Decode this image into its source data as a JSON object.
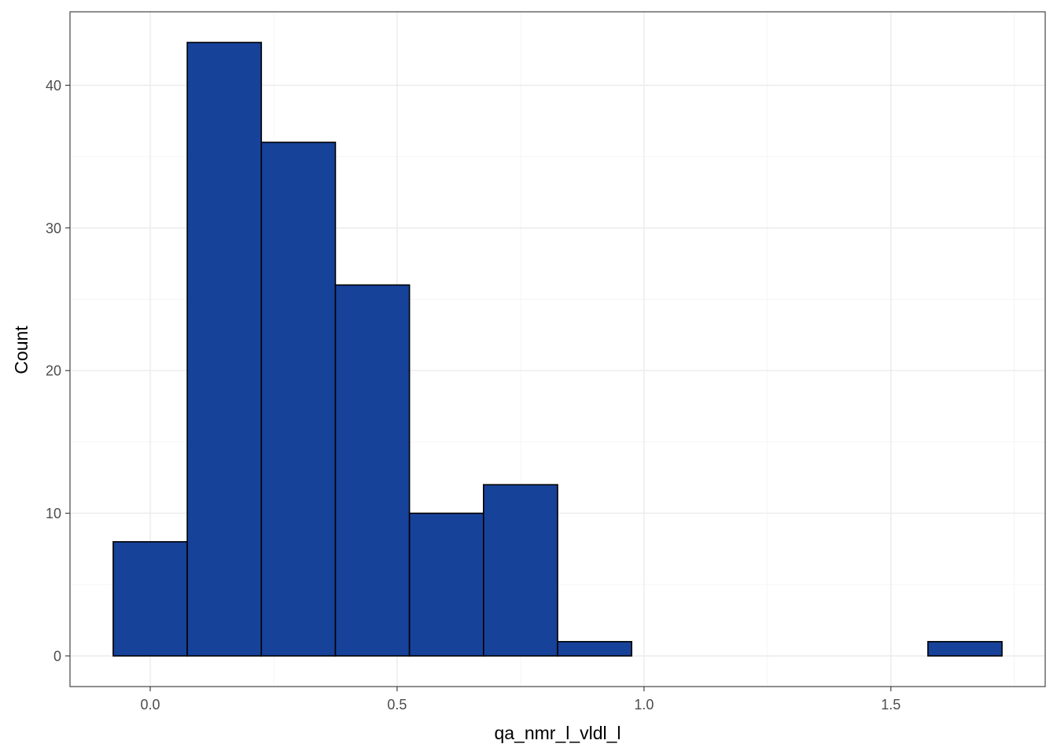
{
  "chart_data": {
    "type": "bar",
    "subtype": "histogram",
    "title": "",
    "xlabel": "qa_nmr_l_vldl_l",
    "ylabel": "Count",
    "bin_width": 0.15,
    "bins": [
      {
        "x0": -0.075,
        "x1": 0.075,
        "count": 8
      },
      {
        "x0": 0.075,
        "x1": 0.225,
        "count": 43
      },
      {
        "x0": 0.225,
        "x1": 0.375,
        "count": 36
      },
      {
        "x0": 0.375,
        "x1": 0.525,
        "count": 26
      },
      {
        "x0": 0.525,
        "x1": 0.675,
        "count": 10
      },
      {
        "x0": 0.675,
        "x1": 0.825,
        "count": 12
      },
      {
        "x0": 0.825,
        "x1": 0.975,
        "count": 1
      },
      {
        "x0": 0.975,
        "x1": 1.125,
        "count": 0
      },
      {
        "x0": 1.125,
        "x1": 1.275,
        "count": 0
      },
      {
        "x0": 1.275,
        "x1": 1.425,
        "count": 0
      },
      {
        "x0": 1.425,
        "x1": 1.575,
        "count": 0
      },
      {
        "x0": 1.575,
        "x1": 1.725,
        "count": 1
      }
    ],
    "xlim": [
      -0.1625,
      1.8125
    ],
    "ylim": [
      -2.15,
      45.15
    ],
    "x_ticks": [
      0.0,
      0.5,
      1.0,
      1.5
    ],
    "x_tick_labels": [
      "0.0",
      "0.5",
      "1.0",
      "1.5"
    ],
    "x_minor_ticks": [
      0.25,
      0.75,
      1.25,
      1.75
    ],
    "y_ticks": [
      0,
      10,
      20,
      30,
      40
    ],
    "y_tick_labels": [
      "0",
      "10",
      "20",
      "30",
      "40"
    ],
    "y_minor_ticks": [
      5,
      15,
      25,
      35
    ],
    "grid": true,
    "legend": "none",
    "colors": {
      "bar_fill": "#17429A",
      "bar_outline": "#000000",
      "grid_major": "#EBEBEB",
      "grid_minor": "#F5F5F5",
      "panel_border": "#333333",
      "tick_text": "#4D4D4D",
      "axis_title": "#000000"
    }
  }
}
